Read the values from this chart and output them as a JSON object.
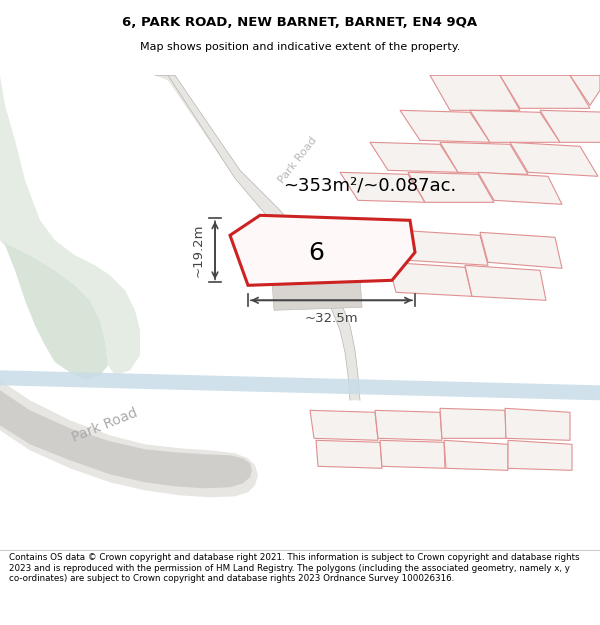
{
  "title": "6, PARK ROAD, NEW BARNET, BARNET, EN4 9QA",
  "subtitle": "Map shows position and indicative extent of the property.",
  "footer": "Contains OS data © Crown copyright and database right 2021. This information is subject to Crown copyright and database rights 2023 and is reproduced with the permission of HM Land Registry. The polygons (including the associated geometry, namely x, y co-ordinates) are subject to Crown copyright and database rights 2023 Ordnance Survey 100026316.",
  "area_label": "~353m²/~0.087ac.",
  "width_label": "~32.5m",
  "height_label": "~19.2m",
  "number_label": "6",
  "map_bg": "#f2f0ee",
  "green_color": "#e4ece4",
  "green_dark": "#d8e4d8",
  "road_gray": "#d0cecb",
  "road_white": "#e8e6e2",
  "pavement_color": "#c8ccd0",
  "blue_road": "#c8dce8",
  "plot_red": "#cc2222",
  "other_outline": "#e09090",
  "dim_color": "#444444",
  "building_gray": "#d8d4d0",
  "road_line_color": "#b8b4b0"
}
